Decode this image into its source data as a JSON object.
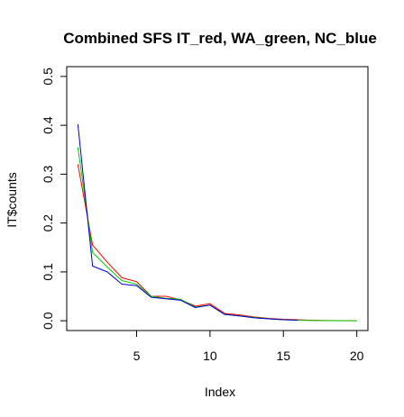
{
  "chart_data": {
    "type": "line",
    "title": "Combined SFS IT_red, WA_green, NC_blue",
    "xlabel": "Index",
    "ylabel": "IT$counts",
    "xlim": [
      0.24,
      20.76
    ],
    "ylim": [
      -0.02,
      0.52
    ],
    "xticks": [
      5,
      10,
      15,
      20
    ],
    "yticks": [
      0.0,
      0.1,
      0.2,
      0.3,
      0.4,
      0.5
    ],
    "grid": false,
    "legend": "none",
    "series": [
      {
        "color": "#ff0000",
        "x": [
          1,
          2,
          3,
          4,
          5,
          6,
          7,
          8,
          9,
          10,
          11,
          12,
          13,
          14,
          15,
          16,
          17,
          18,
          19,
          20
        ],
        "y": [
          0.32,
          0.155,
          0.12,
          0.088,
          0.08,
          0.05,
          0.05,
          0.043,
          0.03,
          0.035,
          0.015,
          0.012,
          0.008,
          0.005,
          0.003,
          0.002,
          0.001,
          0.0005,
          0.0002,
          0.0001
        ]
      },
      {
        "color": "#00cc00",
        "x": [
          1,
          2,
          3,
          4,
          5,
          6,
          7,
          8,
          9,
          10,
          11,
          12,
          13,
          14,
          15,
          16,
          17,
          18,
          19,
          20
        ],
        "y": [
          0.355,
          0.14,
          0.11,
          0.082,
          0.075,
          0.05,
          0.046,
          0.044,
          0.028,
          0.032,
          0.013,
          0.01,
          0.007,
          0.004,
          0.002,
          0.0012,
          0.0005,
          0.0002,
          0.0001,
          0.0001
        ]
      },
      {
        "color": "#0000cc",
        "x": [
          1,
          2,
          3,
          4,
          5,
          6,
          7,
          8,
          9,
          10,
          11,
          12,
          13,
          14,
          15,
          16
        ],
        "y": [
          0.402,
          0.112,
          0.1,
          0.075,
          0.072,
          0.048,
          0.045,
          0.042,
          0.027,
          0.032,
          0.013,
          0.01,
          0.006,
          0.004,
          0.002,
          0.001
        ]
      }
    ]
  }
}
